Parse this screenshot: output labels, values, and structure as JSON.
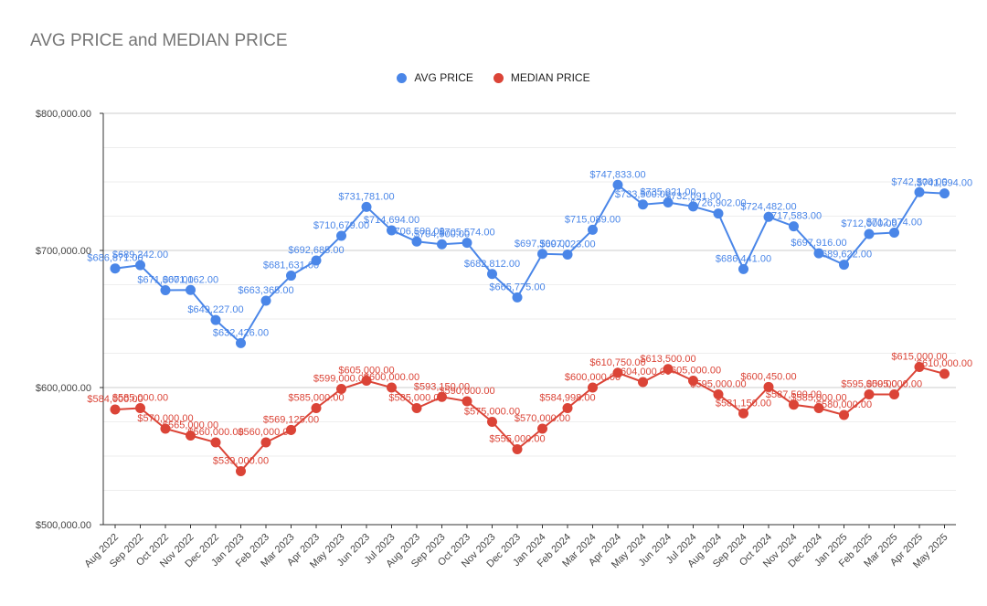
{
  "chart_data": {
    "type": "line",
    "title": "AVG PRICE and MEDIAN PRICE",
    "xlabel": "",
    "ylabel": "",
    "categories": [
      "Aug 2022",
      "Sep 2022",
      "Oct 2022",
      "Nov 2022",
      "Dec 2022",
      "Jan 2023",
      "Feb 2023",
      "Mar 2023",
      "Apr 2023",
      "May 2023",
      "Jun 2023",
      "Jul 2023",
      "Aug 2023",
      "Sep 2023",
      "Oct 2023",
      "Nov 2023",
      "Dec 2023",
      "Jan 2024",
      "Feb 2024",
      "Mar 2024",
      "Apr 2024",
      "May 2024",
      "Jun 2024",
      "Jul 2024",
      "Aug 2024",
      "Sep 2024",
      "Oct 2024",
      "Nov 2024",
      "Dec 2024",
      "Jan 2025",
      "Feb 2025",
      "Mar 2025",
      "Apr 2025",
      "May 2025"
    ],
    "ylim": [
      500000,
      800000
    ],
    "yticks": [
      "$500,000.00",
      "$600,000.00",
      "$700,000.00",
      "$800,000.00"
    ],
    "ytick_values": [
      500000,
      600000,
      700000,
      800000
    ],
    "legend_position": "top",
    "grid": true,
    "series": [
      {
        "name": "AVG PRICE",
        "color": "#4a86e8",
        "values": [
          686871,
          689242,
          671000,
          671162,
          649227,
          632426,
          663365,
          681631,
          692685,
          710679,
          731781,
          714694,
          706500,
          704500,
          705574,
          682812,
          665775,
          697500,
          697023,
          715089,
          747833,
          733500,
          735021,
          732091,
          726902,
          686441,
          724482,
          717583,
          697916,
          689622,
          712000,
          712974,
          742500,
          741594
        ],
        "labels": [
          "$686,871.00",
          "$689,242.00",
          "$671,000.00",
          "$671,162.00",
          "$649,227.00",
          "$632,426.00",
          "$663,365.00",
          "$681,631.00",
          "$692,685.00",
          "$710,679.00",
          "$731,781.00",
          "$714,694.00",
          "$706,500.00",
          "$704,500.00",
          "$705,574.00",
          "$682,812.00",
          "$665,775.00",
          "$697,500.00",
          "$697,023.00",
          "$715,089.00",
          "$747,833.00",
          "$733,500.00",
          "$735,021.00",
          "$732,091.00",
          "$726,902.00",
          "$686,441.00",
          "$724,482.00",
          "$717,583.00",
          "$697,916.00",
          "$689,622.00",
          "$712,000.00",
          "$712,974.00",
          "$742,500.00",
          "$741,594.00"
        ]
      },
      {
        "name": "MEDIAN PRICE",
        "color": "#db4437",
        "values": [
          584000,
          585000,
          570000,
          565000,
          560000,
          539000,
          560000,
          569125,
          585000,
          599000,
          605000,
          600000,
          585000,
          593150,
          590000,
          575000,
          555000,
          570000,
          584998,
          600000,
          610750,
          604000,
          613500,
          605000,
          595000,
          581150,
          600450,
          587500,
          585000,
          580000,
          595000,
          595000,
          615000,
          610000
        ],
        "labels": [
          "$584,000.00",
          "$585,000.00",
          "$570,000.00",
          "$565,000.00",
          "$560,000.00",
          "$539,000.00",
          "$560,000.00",
          "$569,125.00",
          "$585,000.00",
          "$599,000.00",
          "$605,000.00",
          "$600,000.00",
          "$585,000.00",
          "$593,150.00",
          "$590,000.00",
          "$575,000.00",
          "$555,000.00",
          "$570,000.00",
          "$584,998.00",
          "$600,000.00",
          "$610,750.00",
          "$604,000.00",
          "$613,500.00",
          "$605,000.00",
          "$595,000.00",
          "$581,150.00",
          "$600,450.00",
          "$587,500.00",
          "$585,000.00",
          "$580,000.00",
          "$595,000.00",
          "$595,000.00",
          "$615,000.00",
          "$610,000.00"
        ]
      }
    ]
  }
}
